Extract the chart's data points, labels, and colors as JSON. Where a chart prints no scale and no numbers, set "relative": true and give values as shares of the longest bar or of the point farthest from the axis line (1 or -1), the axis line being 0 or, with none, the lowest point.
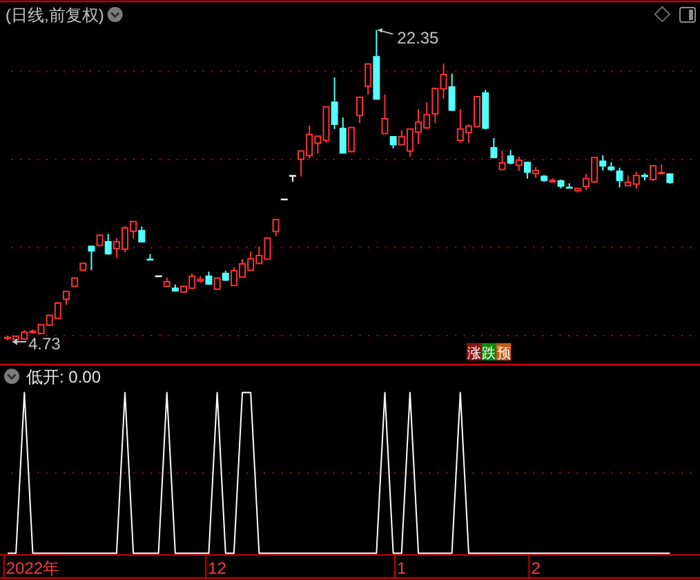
{
  "chart_data": [
    {
      "type": "candlestick",
      "title": "(日线,前复权)",
      "categories": [
        null,
        null,
        null,
        null,
        null,
        null,
        null,
        null,
        null,
        null,
        null,
        null,
        null,
        null,
        null,
        null,
        null,
        null,
        null,
        null,
        null,
        null,
        null,
        null,
        null,
        null,
        null,
        null,
        null,
        null,
        null,
        null,
        null,
        null,
        null,
        null,
        null,
        null,
        null,
        null,
        null,
        null,
        null,
        null,
        null,
        null,
        null,
        null,
        null,
        null,
        null,
        null,
        null,
        null,
        null,
        null,
        null,
        null,
        null,
        null,
        null,
        null,
        null,
        null,
        null,
        null,
        null,
        null,
        null,
        null,
        null,
        null,
        null,
        null,
        null,
        null,
        null,
        null,
        null,
        null
      ],
      "ohlc": [
        [
          4.85,
          5.0,
          4.73,
          4.9
        ],
        [
          4.78,
          5.0,
          4.75,
          4.97
        ],
        [
          4.8,
          5.32,
          4.76,
          5.2
        ],
        [
          5.18,
          5.36,
          5.12,
          5.25
        ],
        [
          5.12,
          5.65,
          5.1,
          5.62
        ],
        [
          5.6,
          6.2,
          5.58,
          6.15
        ],
        [
          5.98,
          6.9,
          5.96,
          6.85
        ],
        [
          7.07,
          7.55,
          6.75,
          7.51
        ],
        [
          7.8,
          8.3,
          7.78,
          8.27
        ],
        [
          8.71,
          9.15,
          8.68,
          9.1
        ],
        [
          10.07,
          10.1,
          8.71,
          9.81
        ],
        [
          10.12,
          10.75,
          10.1,
          10.7
        ],
        [
          10.33,
          10.77,
          9.6,
          9.65
        ],
        [
          9.94,
          10.54,
          9.42,
          10.33
        ],
        [
          9.91,
          11.22,
          9.73,
          11.11
        ],
        [
          10.93,
          11.5,
          10.51,
          11.48
        ],
        [
          10.96,
          11.19,
          10.3,
          10.33
        ],
        [
          9.33,
          9.63,
          9.28,
          9.3
        ],
        [
          8.37,
          8.37,
          8.37,
          8.37
        ],
        [
          7.8,
          8.29,
          7.78,
          8.06
        ],
        [
          7.69,
          7.9,
          7.52,
          7.54
        ],
        [
          7.48,
          7.82,
          7.46,
          7.8
        ],
        [
          7.69,
          8.53,
          7.67,
          8.37
        ],
        [
          8.11,
          8.37,
          8.0,
          8.2
        ],
        [
          8.37,
          8.63,
          7.9,
          7.93
        ],
        [
          7.64,
          8.3,
          7.6,
          8.27
        ],
        [
          8.53,
          8.68,
          8.1,
          8.16
        ],
        [
          7.85,
          8.89,
          7.82,
          8.69
        ],
        [
          8.32,
          9.36,
          8.3,
          9.07
        ],
        [
          8.71,
          9.78,
          8.68,
          9.36
        ],
        [
          9.1,
          10.07,
          9.08,
          9.55
        ],
        [
          9.34,
          10.57,
          9.32,
          10.54
        ],
        [
          10.91,
          11.62,
          10.65,
          11.59
        ],
        [
          12.73,
          12.73,
          12.73,
          12.73
        ],
        [
          14.07,
          14.07,
          13.73,
          14.07
        ],
        [
          15.01,
          15.52,
          14.04,
          15.48
        ],
        [
          15.22,
          16.92,
          15.06,
          16.42
        ],
        [
          15.92,
          16.35,
          15.35,
          16.32
        ],
        [
          16.08,
          18.0,
          15.95,
          17.99
        ],
        [
          18.25,
          19.66,
          16.73,
          17.0
        ],
        [
          16.76,
          17.38,
          15.35,
          15.37
        ],
        [
          15.45,
          16.85,
          15.4,
          16.81
        ],
        [
          17.49,
          18.55,
          17.07,
          18.53
        ],
        [
          19.16,
          20.45,
          18.69,
          20.42
        ],
        [
          20.83,
          22.35,
          18.4,
          18.43
        ],
        [
          16.47,
          18.69,
          16.45,
          17.31
        ],
        [
          16.29,
          16.3,
          15.63,
          15.84
        ],
        [
          15.84,
          16.65,
          15.8,
          16.29
        ],
        [
          15.48,
          16.75,
          15.17,
          16.73
        ],
        [
          16.55,
          17.86,
          15.87,
          17.12
        ],
        [
          16.79,
          18.25,
          16.75,
          17.54
        ],
        [
          17.59,
          19.06,
          17.07,
          19.03
        ],
        [
          19.01,
          20.44,
          18.43,
          19.82
        ],
        [
          19.11,
          19.87,
          17.75,
          17.8
        ],
        [
          16.08,
          17.86,
          15.95,
          16.73
        ],
        [
          16.53,
          17.0,
          15.95,
          16.9
        ],
        [
          16.86,
          18.6,
          16.8,
          18.56
        ],
        [
          18.77,
          18.95,
          16.71,
          16.78
        ],
        [
          15.66,
          16.21,
          15.09,
          15.11
        ],
        [
          14.43,
          15.5,
          14.41,
          14.8
        ],
        [
          15.19,
          15.53,
          14.72,
          14.8
        ],
        [
          14.67,
          15.17,
          14.35,
          14.96
        ],
        [
          14.83,
          14.85,
          13.91,
          14.28
        ],
        [
          14.2,
          14.56,
          13.96,
          14.38
        ],
        [
          14.04,
          14.12,
          13.73,
          13.81
        ],
        [
          13.73,
          13.94,
          13.72,
          13.81
        ],
        [
          13.78,
          13.86,
          13.36,
          13.49
        ],
        [
          13.41,
          13.65,
          13.36,
          13.38
        ],
        [
          13.23,
          13.4,
          13.13,
          13.36
        ],
        [
          13.47,
          14.17,
          13.26,
          13.91
        ],
        [
          13.73,
          15.14,
          13.65,
          15.11
        ],
        [
          14.9,
          15.24,
          14.38,
          14.64
        ],
        [
          14.56,
          14.85,
          14.33,
          14.43
        ],
        [
          14.33,
          14.54,
          13.41,
          13.81
        ],
        [
          13.52,
          14.09,
          13.5,
          13.7
        ],
        [
          13.6,
          14.3,
          13.33,
          14.09
        ],
        [
          14.09,
          14.22,
          13.81,
          14.04
        ],
        [
          13.86,
          14.67,
          13.78,
          14.64
        ],
        [
          14.2,
          14.72,
          14.17,
          14.25
        ],
        [
          14.17,
          14.18,
          13.62,
          13.7
        ]
      ],
      "colors": [
        "#ff3232",
        "#ff3232",
        "#ff3232",
        "#ff3232",
        "#ff3232",
        "#ff3232",
        "#ff3232",
        "#ff3232",
        "#ff3232",
        "#ff3232",
        "#54ffff",
        "#ff3232",
        "#54ffff",
        "#ff3232",
        "#ff3232",
        "#ff3232",
        "#54ffff",
        "#54ffff",
        "#ffffff",
        "#ff3232",
        "#54ffff",
        "#ff3232",
        "#ff3232",
        "#ff3232",
        "#54ffff",
        "#ff3232",
        "#54ffff",
        "#ff3232",
        "#ff3232",
        "#ff3232",
        "#ff3232",
        "#ff3232",
        "#ff3232",
        "#ffffff",
        "#ffffff",
        "#ff3232",
        "#ff3232",
        "#ff3232",
        "#ff3232",
        "#54ffff",
        "#54ffff",
        "#ff3232",
        "#ff3232",
        "#ff3232",
        "#54ffff",
        "#ff3232",
        "#54ffff",
        "#ff3232",
        "#ff3232",
        "#ff3232",
        "#ff3232",
        "#ff3232",
        "#ff3232",
        "#54ffff",
        "#ff3232",
        "#ff3232",
        "#ff3232",
        "#54ffff",
        "#54ffff",
        "#ff3232",
        "#54ffff",
        "#ff3232",
        "#54ffff",
        "#ff3232",
        "#54ffff",
        "#ff3232",
        "#54ffff",
        "#54ffff",
        "#ff3232",
        "#ff3232",
        "#ff3232",
        "#54ffff",
        "#54ffff",
        "#54ffff",
        "#ff3232",
        "#ff3232",
        "#54ffff",
        "#ff3232",
        "#ff3232",
        "#54ffff"
      ],
      "ref_lines": [
        {
          "axis": "y",
          "value": 20,
          "color": "#b40000",
          "line_style": "dotted"
        },
        {
          "axis": "y",
          "value": 15,
          "color": "#b40000",
          "line_style": "dotted"
        },
        {
          "axis": "y",
          "value": 10,
          "color": "#b40000",
          "line_style": "dotted"
        },
        {
          "axis": "y",
          "value": 5,
          "color": "#b40000",
          "line_style": "dotted"
        }
      ],
      "annotations": [
        "22.35",
        "4.73",
        "涨跌预"
      ]
    },
    {
      "type": "line",
      "title": "低开: 0.00",
      "categories": [
        null,
        null,
        null,
        "2022年",
        null,
        null,
        null,
        null,
        null,
        null,
        null,
        null,
        null,
        null,
        null,
        null,
        null,
        null,
        null,
        null,
        null,
        null,
        null,
        null,
        null,
        "12",
        null,
        null,
        null,
        null,
        null,
        null,
        null,
        null,
        null,
        null,
        null,
        null,
        null,
        null,
        null,
        null,
        null,
        null,
        null,
        null,
        null,
        "1",
        null,
        null,
        null,
        null,
        null,
        null,
        null,
        null,
        null,
        null,
        null,
        null,
        null,
        null,
        null,
        "2",
        null,
        null,
        null,
        null,
        null,
        null,
        null,
        null,
        null,
        null,
        null,
        null,
        null,
        null,
        null,
        null
      ],
      "values": [
        0,
        0,
        1,
        0,
        0,
        0,
        0,
        0,
        0,
        0,
        0,
        0,
        0,
        0,
        1,
        0,
        0,
        0,
        0,
        1,
        0,
        0,
        0,
        0,
        0,
        1,
        0,
        0,
        1,
        1,
        0,
        0,
        0,
        0,
        0,
        0,
        0,
        0,
        0,
        0,
        0,
        0,
        0,
        0,
        0,
        1,
        0,
        0,
        1,
        0,
        0,
        0,
        0,
        0,
        1,
        0,
        0,
        0,
        0,
        0,
        0,
        0,
        0,
        0,
        0,
        0,
        0,
        0,
        0,
        0,
        0,
        0,
        0,
        0,
        0,
        0,
        0,
        0,
        0,
        0
      ],
      "color": "#ffffff",
      "relative": true,
      "tick_labels": "x",
      "ref_lines": [
        {
          "axis": "y",
          "value": 0.5,
          "color": "#b40000",
          "line_style": "dotted"
        }
      ]
    }
  ]
}
